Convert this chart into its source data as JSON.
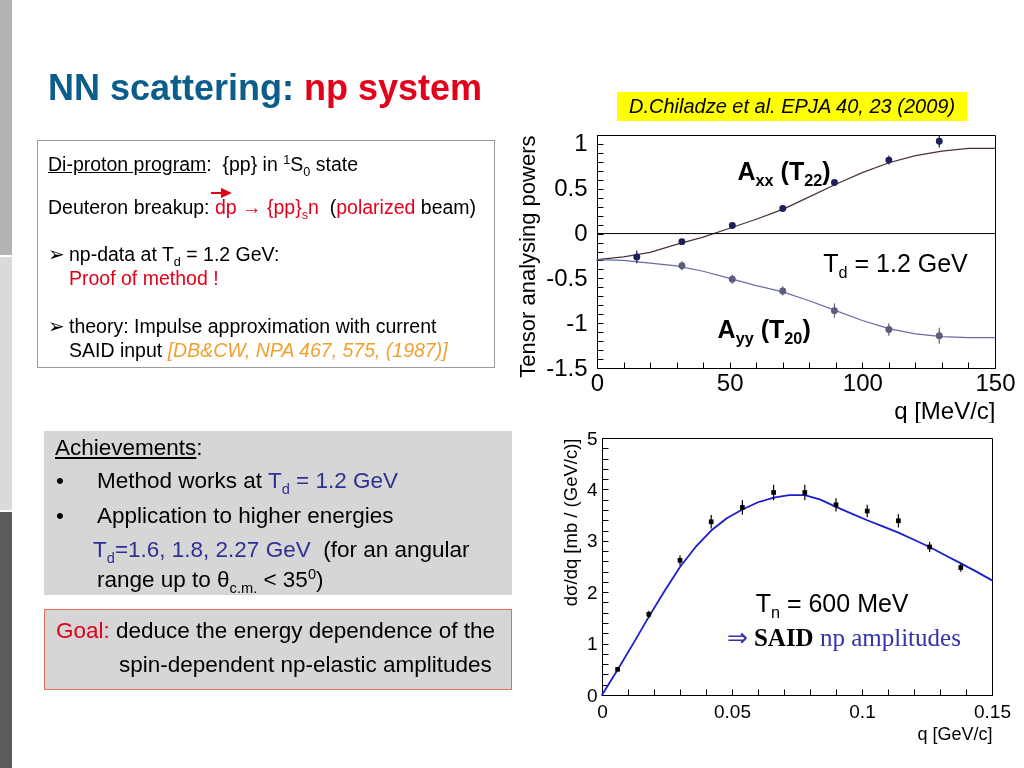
{
  "chart_data": [
    {
      "type": "other",
      "annotations": [
        "NN scattering: ",
        "np system"
      ]
    },
    {
      "type": "other",
      "annotations": [
        "Di-proton program",
        ":  {pp} in $^{1}$S$_{0}$ state",
        "Deuteron breakup: ",
        "dp",
        " → {pp}$_{s}$n",
        "  (",
        "polarized",
        " beam)",
        "➢",
        "np-data at T$_{d}$ = 1.2 GeV:",
        "Proof of method !",
        "➢",
        "theory: Impulse approximation with current",
        "SAID input ",
        "[DB&CW, NPA 467, 575, (1987)]"
      ]
    },
    {
      "type": "scatter",
      "xlabel": "q [MeV/c]",
      "ylabel": "Tensor analysing powers",
      "xlim": [
        0,
        150
      ],
      "ylim": [
        -1.5,
        1.1
      ],
      "xticks": [
        0,
        {
          "value": 10,
          "label": null
        },
        {
          "value": 20,
          "label": null
        },
        {
          "value": 30,
          "label": null
        },
        {
          "value": 40,
          "label": null
        },
        50,
        {
          "value": 60,
          "label": null
        },
        {
          "value": 70,
          "label": null
        },
        {
          "value": 80,
          "label": null
        },
        {
          "value": 90,
          "label": null
        },
        100,
        {
          "value": 110,
          "label": null
        },
        {
          "value": 120,
          "label": null
        },
        {
          "value": 130,
          "label": null
        },
        {
          "value": 140,
          "label": null
        },
        150
      ],
      "yticks": [
        -1.5,
        {
          "value": -1.4,
          "label": null
        },
        {
          "value": -1.3,
          "label": null
        },
        {
          "value": -1.2,
          "label": null
        },
        {
          "value": -1.1,
          "label": null
        },
        -1,
        {
          "value": -0.9,
          "label": null
        },
        {
          "value": -0.8,
          "label": null
        },
        {
          "value": -0.7,
          "label": null
        },
        {
          "value": -0.6,
          "label": null
        },
        -0.5,
        {
          "value": -0.4,
          "label": null
        },
        {
          "value": -0.3,
          "label": null
        },
        {
          "value": -0.2,
          "label": null
        },
        {
          "value": -0.1,
          "label": null
        },
        0,
        {
          "value": 0.1,
          "label": null
        },
        {
          "value": 0.2,
          "label": null
        },
        {
          "value": 0.3,
          "label": null
        },
        {
          "value": 0.4,
          "label": null
        },
        0.5,
        {
          "value": 0.6,
          "label": null
        },
        {
          "value": 0.7,
          "label": null
        },
        {
          "value": 0.8,
          "label": null
        },
        {
          "value": 0.9,
          "label": null
        },
        1
      ],
      "ref_lines": [
        {
          "axis": "y",
          "value": 0,
          "color": "#000000"
        }
      ],
      "annotations": [
        "T$_{d}$ = 1.2 GeV",
        "D.Chiladze et al. EPJA 40, 23 (2009)"
      ],
      "series": [
        {
          "type": "line",
          "color": "#4a3038",
          "x": [
            0,
            10,
            20,
            30,
            40,
            50,
            60,
            70,
            80,
            90,
            100,
            110,
            120,
            130,
            140,
            150
          ],
          "values": [
            -0.29,
            -0.26,
            -0.21,
            -0.12,
            -0.04,
            0.06,
            0.16,
            0.27,
            0.41,
            0.55,
            0.68,
            0.79,
            0.87,
            0.92,
            0.95,
            0.95
          ]
        },
        {
          "type": "line",
          "color": "#6a6aaa",
          "x": [
            0,
            10,
            20,
            30,
            40,
            50,
            60,
            70,
            80,
            90,
            100,
            110,
            120,
            130,
            140,
            150
          ],
          "values": [
            -0.29,
            -0.3,
            -0.33,
            -0.36,
            -0.42,
            -0.5,
            -0.58,
            -0.65,
            -0.75,
            -0.86,
            -0.97,
            -1.06,
            -1.12,
            -1.15,
            -1.16,
            -1.16
          ]
        },
        {
          "name": "A$_{xx}$ (T$_{22}$)",
          "type": "scatter",
          "marker": "circle",
          "color": "#1f1f5c",
          "x": [
            15,
            32,
            51,
            70,
            89.5,
            110,
            129
          ],
          "values": [
            -0.26,
            -0.09,
            0.09,
            0.28,
            0.57,
            0.82,
            1.03
          ],
          "errors": [
            0.07,
            0.03,
            0.02,
            0.02,
            0.04,
            0.05,
            0.07
          ]
        },
        {
          "name": "A$_{yy}$ (T$_{20}$)",
          "type": "scatter",
          "marker": "circle",
          "color": "#5c5c7c",
          "x": [
            32,
            51,
            70,
            89.5,
            110,
            129
          ],
          "values": [
            -0.36,
            -0.51,
            -0.64,
            -0.86,
            -1.07,
            -1.14
          ],
          "errors": [
            0.05,
            0.05,
            0.05,
            0.08,
            0.07,
            0.09
          ]
        }
      ]
    },
    {
      "type": "other",
      "annotations": [
        "Achievements",
        ":",
        "•",
        "Method works at ",
        "T$_{d}$ = 1.2 GeV",
        "•",
        "Application to higher energies",
        "T$_{d}$=1.6, 1.8, 2.27 GeV",
        "  (for an angular",
        "range up to θ$_{c.m.}$ < 35$^{0}$)"
      ]
    },
    {
      "type": "scatter",
      "xlabel": "q [GeV/c]",
      "ylabel": "dσ/dq [mb / (GeV/c)]",
      "xlim": [
        0,
        0.15
      ],
      "ylim": [
        0,
        5
      ],
      "xticks": [
        0,
        {
          "value": 0.01,
          "label": null
        },
        {
          "value": 0.02,
          "label": null
        },
        {
          "value": 0.03,
          "label": null
        },
        {
          "value": 0.04,
          "label": null
        },
        0.05,
        {
          "value": 0.06,
          "label": null
        },
        {
          "value": 0.07,
          "label": null
        },
        {
          "value": 0.08,
          "label": null
        },
        {
          "value": 0.09,
          "label": null
        },
        0.1,
        {
          "value": 0.11,
          "label": null
        },
        {
          "value": 0.12,
          "label": null
        },
        {
          "value": 0.13,
          "label": null
        },
        {
          "value": 0.14,
          "label": null
        },
        0.15
      ],
      "yticks": [
        0,
        {
          "value": 0.2,
          "label": null
        },
        {
          "value": 0.4,
          "label": null
        },
        {
          "value": 0.6,
          "label": null
        },
        {
          "value": 0.8,
          "label": null
        },
        1,
        {
          "value": 1.2,
          "label": null
        },
        {
          "value": 1.4,
          "label": null
        },
        {
          "value": 1.6,
          "label": null
        },
        {
          "value": 1.8,
          "label": null
        },
        2,
        {
          "value": 2.2,
          "label": null
        },
        {
          "value": 2.4,
          "label": null
        },
        {
          "value": 2.6,
          "label": null
        },
        {
          "value": 2.8,
          "label": null
        },
        3,
        {
          "value": 3.2,
          "label": null
        },
        {
          "value": 3.4,
          "label": null
        },
        {
          "value": 3.6,
          "label": null
        },
        {
          "value": 3.8,
          "label": null
        },
        4,
        {
          "value": 4.2,
          "label": null
        },
        {
          "value": 4.4,
          "label": null
        },
        {
          "value": 4.6,
          "label": null
        },
        {
          "value": 4.8,
          "label": null
        },
        5
      ],
      "annotations": [
        "T$_{n}$ = 600 MeV",
        "⇒",
        "SAID",
        "np amplitudes"
      ],
      "series": [
        {
          "type": "line",
          "color": "#1c1ccf",
          "x": [
            0,
            0.006,
            0.012,
            0.018,
            0.024,
            0.03,
            0.036,
            0.042,
            0.048,
            0.054,
            0.06,
            0.066,
            0.072,
            0.078,
            0.084,
            0.09,
            0.096,
            0.102,
            0.108,
            0.114,
            0.12,
            0.126,
            0.132,
            0.138,
            0.144,
            0.15
          ],
          "values": [
            0,
            0.49,
            1.0,
            1.52,
            2.02,
            2.49,
            2.88,
            3.2,
            3.44,
            3.61,
            3.75,
            3.84,
            3.89,
            3.89,
            3.8,
            3.66,
            3.53,
            3.4,
            3.28,
            3.16,
            3.02,
            2.88,
            2.72,
            2.56,
            2.4,
            2.23
          ]
        },
        {
          "type": "scatter",
          "marker": "square",
          "color": "#000000",
          "x": [
            0.006,
            0.018,
            0.03,
            0.042,
            0.054,
            0.066,
            0.078,
            0.09,
            0.102,
            0.114,
            0.126,
            0.138
          ],
          "values": [
            0.5,
            1.57,
            2.62,
            3.37,
            3.65,
            3.94,
            3.94,
            3.7,
            3.58,
            3.39,
            2.88,
            2.48
          ],
          "errors": [
            0.03,
            0.07,
            0.1,
            0.13,
            0.14,
            0.15,
            0.15,
            0.13,
            0.12,
            0.13,
            0.1,
            0.08
          ]
        }
      ]
    },
    {
      "type": "other",
      "annotations": [
        "Goal:",
        " deduce the energy dependence of the",
        "spin-dependent np-elastic amplitudes"
      ]
    }
  ]
}
